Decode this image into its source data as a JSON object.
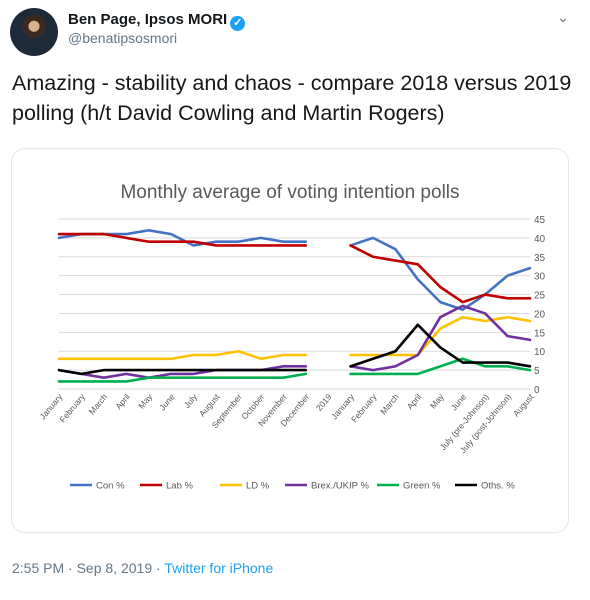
{
  "tweet": {
    "author_name": "Ben Page, Ipsos MORI",
    "author_handle": "@benatipsosmori",
    "text": "Amazing - stability and chaos - compare 2018 versus 2019 polling (h/t David Cowling and Martin Rogers)",
    "time": "2:55 PM",
    "date": "Sep 8, 2019",
    "separator": "·",
    "app": "Twitter for iPhone",
    "icons": {
      "verified": "verified-badge-icon",
      "menu": "chevron-down-icon"
    },
    "colors": {
      "link": "#1da1f2",
      "muted": "#657786"
    }
  },
  "chart_data": {
    "type": "line",
    "title": "Monthly average of voting intention polls",
    "x": [
      "January",
      "February",
      "March",
      "April",
      "May",
      "June",
      "July",
      "August",
      "September",
      "October",
      "November",
      "December",
      "2019",
      "January",
      "February",
      "March",
      "April",
      "May",
      "June",
      "July (pre-Johnson)",
      "July (post-Johnson)",
      "August"
    ],
    "ylim": [
      0,
      45
    ],
    "yticks": [
      0,
      5,
      10,
      15,
      20,
      25,
      30,
      35,
      40,
      45
    ],
    "grid": true,
    "legend_position": "bottom",
    "series": [
      {
        "name": "Con %",
        "color": "#4472c4",
        "values": [
          40,
          41,
          41,
          41,
          42,
          41,
          38,
          39,
          39,
          40,
          39,
          39,
          null,
          38,
          40,
          37,
          29,
          23,
          21,
          25,
          30,
          32
        ]
      },
      {
        "name": "Lab %",
        "color": "#c00000",
        "values": [
          41,
          41,
          41,
          40,
          39,
          39,
          39,
          38,
          38,
          38,
          38,
          38,
          null,
          38,
          35,
          34,
          33,
          27,
          23,
          25,
          24,
          24
        ]
      },
      {
        "name": "LD %",
        "color": "#ffc000",
        "values": [
          8,
          8,
          8,
          8,
          8,
          8,
          9,
          9,
          10,
          8,
          9,
          9,
          null,
          9,
          9,
          9,
          9,
          16,
          19,
          18,
          19,
          18
        ]
      },
      {
        "name": "Brex./UKIP %",
        "color": "#7030a0",
        "values": [
          5,
          4,
          3,
          4,
          3,
          4,
          4,
          5,
          5,
          5,
          6,
          6,
          null,
          6,
          5,
          6,
          9,
          19,
          22,
          20,
          14,
          13
        ]
      },
      {
        "name": "Green %",
        "color": "#00b050",
        "values": [
          2,
          2,
          2,
          2,
          3,
          3,
          3,
          3,
          3,
          3,
          3,
          4,
          null,
          4,
          4,
          4,
          4,
          6,
          8,
          6,
          6,
          5
        ]
      },
      {
        "name": "Oths. %",
        "color": "#000000",
        "values": [
          5,
          4,
          5,
          5,
          5,
          5,
          5,
          5,
          5,
          5,
          5,
          5,
          null,
          6,
          8,
          10,
          17,
          11,
          7,
          7,
          7,
          6
        ]
      }
    ]
  }
}
